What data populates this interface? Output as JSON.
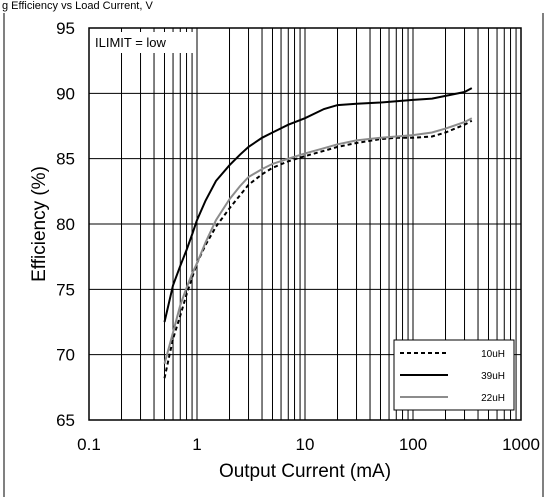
{
  "header_fragment": "g Efficiency vs Load Current, V",
  "chart_data": {
    "type": "line",
    "x_scale": "log",
    "xlim": [
      0.1,
      1000
    ],
    "ylim": [
      65,
      95
    ],
    "xlabel": "Output Current (mA)",
    "ylabel": "Efficiency (%)",
    "xticks": [
      "0.1",
      "1",
      "10",
      "100",
      "1000"
    ],
    "yticks": [
      "65",
      "70",
      "75",
      "80",
      "85",
      "90",
      "95"
    ],
    "annotation": "ILIMIT = low",
    "grid": true,
    "legend_position": "bottom-right",
    "series": [
      {
        "name": "10uH",
        "style": "dashed",
        "color": "#000000",
        "points": [
          [
            0.5,
            68.2
          ],
          [
            0.55,
            69.8
          ],
          [
            0.6,
            71.2
          ],
          [
            0.7,
            73.0
          ],
          [
            0.8,
            74.6
          ],
          [
            0.9,
            75.9
          ],
          [
            1.0,
            77.0
          ],
          [
            1.2,
            78.4
          ],
          [
            1.5,
            79.8
          ],
          [
            2.0,
            81.2
          ],
          [
            2.5,
            82.2
          ],
          [
            3.0,
            83.0
          ],
          [
            4.0,
            83.8
          ],
          [
            5.0,
            84.3
          ],
          [
            7.0,
            84.8
          ],
          [
            10,
            85.2
          ],
          [
            15,
            85.6
          ],
          [
            20,
            85.9
          ],
          [
            30,
            86.2
          ],
          [
            50,
            86.5
          ],
          [
            70,
            86.6
          ],
          [
            100,
            86.6
          ],
          [
            150,
            86.7
          ],
          [
            200,
            87.0
          ],
          [
            300,
            87.6
          ],
          [
            350,
            87.9
          ]
        ]
      },
      {
        "name": "39uH",
        "style": "solid",
        "color": "#000000",
        "points": [
          [
            0.5,
            72.5
          ],
          [
            0.6,
            75.3
          ],
          [
            0.7,
            76.8
          ],
          [
            0.8,
            78.0
          ],
          [
            0.9,
            79.2
          ],
          [
            1.0,
            80.3
          ],
          [
            1.2,
            81.8
          ],
          [
            1.5,
            83.3
          ],
          [
            2.0,
            84.5
          ],
          [
            2.5,
            85.3
          ],
          [
            3.0,
            85.9
          ],
          [
            4.0,
            86.6
          ],
          [
            5.0,
            87.0
          ],
          [
            7.0,
            87.6
          ],
          [
            10,
            88.1
          ],
          [
            15,
            88.8
          ],
          [
            20,
            89.1
          ],
          [
            30,
            89.2
          ],
          [
            50,
            89.3
          ],
          [
            70,
            89.4
          ],
          [
            100,
            89.5
          ],
          [
            150,
            89.6
          ],
          [
            200,
            89.8
          ],
          [
            300,
            90.1
          ],
          [
            350,
            90.4
          ]
        ]
      },
      {
        "name": "22uH",
        "style": "solid",
        "color": "#8c8c8c",
        "points": [
          [
            0.5,
            69.3
          ],
          [
            0.6,
            71.7
          ],
          [
            0.7,
            73.8
          ],
          [
            0.8,
            75.1
          ],
          [
            0.9,
            76.2
          ],
          [
            1.0,
            77.0
          ],
          [
            1.2,
            78.6
          ],
          [
            1.5,
            80.3
          ],
          [
            2.0,
            81.9
          ],
          [
            2.5,
            82.9
          ],
          [
            3.0,
            83.6
          ],
          [
            4.0,
            84.2
          ],
          [
            5.0,
            84.6
          ],
          [
            7.0,
            85.0
          ],
          [
            10,
            85.4
          ],
          [
            15,
            85.8
          ],
          [
            20,
            86.1
          ],
          [
            30,
            86.4
          ],
          [
            50,
            86.6
          ],
          [
            70,
            86.7
          ],
          [
            100,
            86.8
          ],
          [
            150,
            87.0
          ],
          [
            200,
            87.3
          ],
          [
            300,
            87.8
          ],
          [
            350,
            88.1
          ]
        ]
      }
    ]
  }
}
